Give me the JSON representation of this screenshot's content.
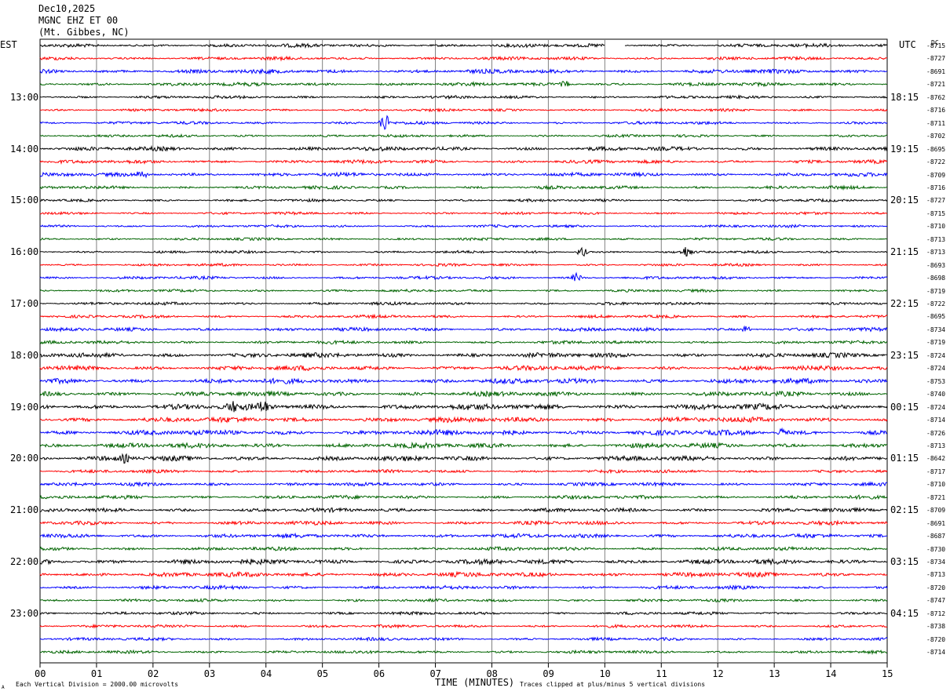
{
  "header": {
    "date": "Dec10,2025",
    "station": "MGNC EHZ ET 00",
    "location": "(Mt. Gibbes, NC)"
  },
  "left_axis_title": "EST",
  "right_axis_title": "UTC",
  "dc_title": "DC",
  "footer": {
    "scale_note": "Each Vertical Division = 2000.00 microvolts",
    "clip_note": "Traces clipped at plus/minus 5 vertical divisions",
    "corner_mark": "A"
  },
  "colors": {
    "black": "#000000",
    "red": "#ff0000",
    "blue": "#0000ff",
    "green": "#006400",
    "grid": "#808080"
  },
  "chart_data": {
    "type": "line",
    "xlabel": "TIME (MINUTES)",
    "xlim": [
      0,
      15
    ],
    "x_ticks": [
      "00",
      "01",
      "02",
      "03",
      "04",
      "05",
      "06",
      "07",
      "08",
      "09",
      "10",
      "11",
      "12",
      "13",
      "14",
      "15"
    ],
    "trace_colors": [
      "black",
      "red",
      "blue",
      "green"
    ],
    "trace_count": 48,
    "left_hour_labels": [
      "13:00",
      "14:00",
      "15:00",
      "16:00",
      "17:00",
      "18:00",
      "19:00",
      "20:00",
      "21:00",
      "22:00",
      "23:00"
    ],
    "right_hour_labels": [
      "18:15",
      "19:15",
      "20:15",
      "21:15",
      "22:15",
      "23:15",
      "00:15",
      "01:15",
      "02:15",
      "03:15",
      "04:15"
    ],
    "hour_label_trace_index": [
      4,
      8,
      12,
      16,
      20,
      24,
      28,
      32,
      36,
      40,
      44
    ],
    "dc_offsets": [
      "-8715",
      "-8727",
      "-8691",
      "-8721",
      "-8762",
      "-8716",
      "-8711",
      "-8702",
      "-8695",
      "-8722",
      "-8709",
      "-8716",
      "-8727",
      "-8715",
      "-8710",
      "-8713",
      "-8713",
      "-8693",
      "-8698",
      "-8719",
      "-8722",
      "-8695",
      "-8734",
      "-8719",
      "-8724",
      "-8724",
      "-8753",
      "-8740",
      "-8724",
      "-8714",
      "-8726",
      "-8713",
      "-8642",
      "-8717",
      "-8710",
      "-8721",
      "-8709",
      "-8691",
      "-8687",
      "-8730",
      "-8734",
      "-8713",
      "-8720",
      "-8747",
      "-8712",
      "-8738",
      "-8720",
      "-8714"
    ],
    "trace_activity": [
      0.6,
      0.55,
      0.7,
      0.6,
      0.5,
      0.45,
      0.5,
      0.45,
      0.7,
      0.6,
      0.65,
      0.55,
      0.45,
      0.45,
      0.45,
      0.45,
      0.45,
      0.45,
      0.5,
      0.45,
      0.5,
      0.5,
      0.6,
      0.55,
      0.8,
      0.8,
      0.85,
      0.8,
      1.0,
      0.9,
      0.9,
      0.85,
      0.85,
      0.55,
      0.6,
      0.6,
      0.65,
      0.65,
      0.7,
      0.6,
      0.85,
      0.8,
      0.6,
      0.5,
      0.5,
      0.5,
      0.5,
      0.5
    ],
    "events": [
      {
        "trace": 6,
        "minute": 6.1,
        "amplitude": 3.2
      },
      {
        "trace": 16,
        "minute": 9.6,
        "amplitude": 1.6
      },
      {
        "trace": 16,
        "minute": 11.45,
        "amplitude": 1.8
      },
      {
        "trace": 18,
        "minute": 9.5,
        "amplitude": 1.2
      },
      {
        "trace": 28,
        "minute": 3.95,
        "amplitude": 1.8
      },
      {
        "trace": 28,
        "minute": 3.4,
        "amplitude": 1.3
      },
      {
        "trace": 10,
        "minute": 1.8,
        "amplitude": 1.3
      },
      {
        "trace": 30,
        "minute": 13.15,
        "amplitude": 1.3
      },
      {
        "trace": 32,
        "minute": 1.5,
        "amplitude": 1.0
      },
      {
        "trace": 3,
        "minute": 9.3,
        "amplitude": 1.0
      },
      {
        "trace": 22,
        "minute": 12.5,
        "amplitude": 1.0
      }
    ],
    "gap": {
      "trace": 0,
      "start_minute": 10.0,
      "end_minute": 10.35
    }
  }
}
